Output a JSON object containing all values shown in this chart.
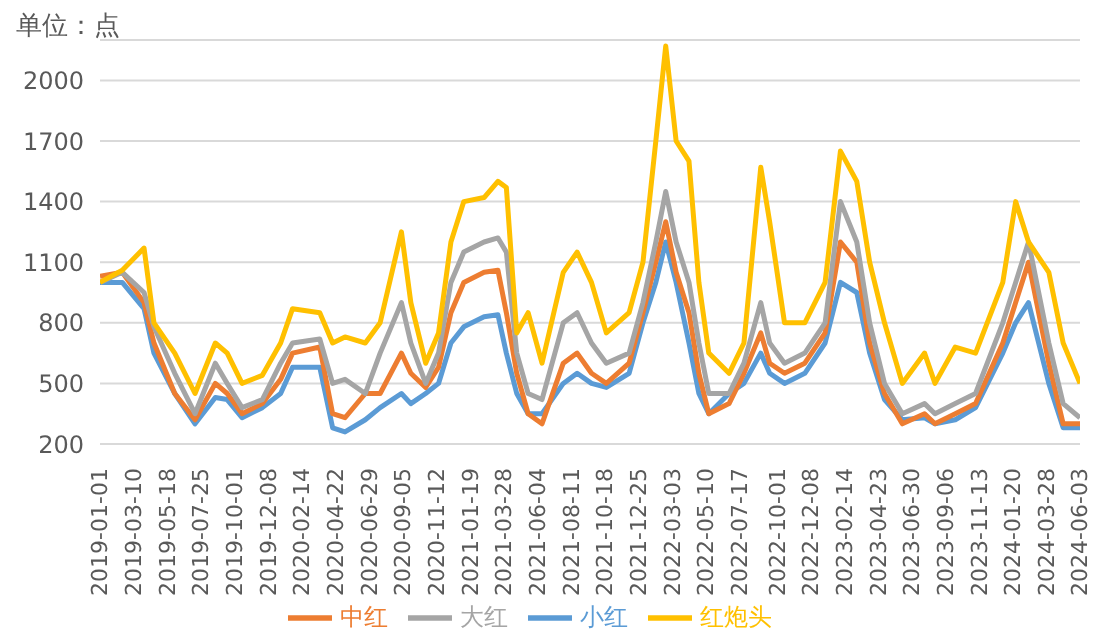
{
  "chart_data": {
    "type": "line",
    "ylabel": "单位：点",
    "x": [
      "2019-01-01",
      "2019-02-15",
      "2019-03-31",
      "2019-04-20",
      "2019-06-01",
      "2019-07-12",
      "2019-08-22",
      "2019-09-15",
      "2019-10-15",
      "2019-11-25",
      "2020-01-01",
      "2020-01-25",
      "2020-03-20",
      "2020-04-15",
      "2020-05-10",
      "2020-06-20",
      "2020-07-20",
      "2020-09-01",
      "2020-09-20",
      "2020-10-20",
      "2020-11-15",
      "2020-12-10",
      "2021-01-05",
      "2021-02-15",
      "2021-03-15",
      "2021-04-01",
      "2021-04-22",
      "2021-05-15",
      "2021-06-12",
      "2021-07-25",
      "2021-08-22",
      "2021-09-20",
      "2021-10-20",
      "2021-12-05",
      "2022-01-02",
      "2022-01-28",
      "2022-02-17",
      "2022-03-10",
      "2022-04-05",
      "2022-04-25",
      "2022-05-15",
      "2022-06-25",
      "2022-07-25",
      "2022-08-28",
      "2022-09-15",
      "2022-10-15",
      "2022-11-25",
      "2023-01-05",
      "2023-02-05",
      "2023-03-10",
      "2023-04-05",
      "2023-05-05",
      "2023-06-10",
      "2023-07-25",
      "2023-08-15",
      "2023-09-25",
      "2023-11-05",
      "2023-12-30",
      "2024-01-25",
      "2024-02-20",
      "2024-04-01",
      "2024-04-30",
      "2024-06-03"
    ],
    "series": [
      {
        "name": "小红",
        "color": "#5b9bd5",
        "values": [
          1000,
          1000,
          870,
          650,
          450,
          300,
          430,
          420,
          330,
          380,
          450,
          580,
          580,
          280,
          260,
          320,
          380,
          450,
          400,
          450,
          500,
          700,
          780,
          830,
          840,
          650,
          450,
          350,
          350,
          500,
          550,
          500,
          480,
          550,
          800,
          1000,
          1200,
          1000,
          700,
          450,
          350,
          450,
          500,
          650,
          550,
          500,
          550,
          700,
          1000,
          950,
          650,
          420,
          320,
          330,
          300,
          320,
          380,
          650,
          800,
          900,
          500,
          280,
          280
        ]
      },
      {
        "name": "中红",
        "color": "#ed7d31",
        "values": [
          1030,
          1050,
          900,
          700,
          450,
          320,
          500,
          450,
          350,
          400,
          520,
          650,
          680,
          350,
          330,
          450,
          450,
          650,
          550,
          480,
          580,
          850,
          1000,
          1050,
          1060,
          850,
          550,
          350,
          300,
          600,
          650,
          550,
          500,
          600,
          850,
          1100,
          1300,
          1050,
          850,
          550,
          350,
          400,
          550,
          750,
          600,
          550,
          600,
          750,
          1200,
          1100,
          700,
          450,
          300,
          350,
          300,
          350,
          400,
          700,
          900,
          1100,
          600,
          300,
          300
        ]
      },
      {
        "name": "大红",
        "color": "#a5a5a5",
        "values": [
          1000,
          1050,
          950,
          780,
          550,
          350,
          600,
          500,
          380,
          420,
          600,
          700,
          720,
          500,
          520,
          450,
          650,
          900,
          700,
          500,
          650,
          1000,
          1150,
          1200,
          1220,
          1150,
          650,
          450,
          420,
          800,
          850,
          700,
          600,
          650,
          900,
          1200,
          1450,
          1200,
          1000,
          700,
          450,
          450,
          600,
          900,
          700,
          600,
          650,
          800,
          1400,
          1200,
          800,
          500,
          350,
          400,
          350,
          400,
          450,
          800,
          1000,
          1200,
          700,
          400,
          330
        ]
      },
      {
        "name": "红炮头",
        "color": "#ffc000",
        "values": [
          1000,
          1060,
          1170,
          800,
          650,
          450,
          700,
          650,
          500,
          540,
          700,
          870,
          850,
          700,
          730,
          700,
          800,
          1250,
          900,
          600,
          750,
          1200,
          1400,
          1420,
          1500,
          1470,
          750,
          850,
          600,
          1050,
          1150,
          1000,
          750,
          850,
          1100,
          1700,
          2170,
          1700,
          1600,
          1000,
          650,
          550,
          700,
          1570,
          1300,
          800,
          800,
          1000,
          1650,
          1500,
          1100,
          800,
          500,
          650,
          500,
          680,
          650,
          1000,
          1400,
          1200,
          1050,
          700,
          500
        ]
      }
    ],
    "xlim": [
      "2019-01-01",
      "2024-06-03"
    ],
    "xticks": [
      "2019-01-01",
      "2019-03-10",
      "2019-05-18",
      "2019-07-25",
      "2019-10-01",
      "2019-12-08",
      "2020-02-14",
      "2020-04-22",
      "2020-06-29",
      "2020-09-05",
      "2020-11-12",
      "2021-01-19",
      "2021-03-28",
      "2021-06-04",
      "2021-08-11",
      "2021-10-18",
      "2021-12-25",
      "2022-03-03",
      "2022-05-10",
      "2022-07-17",
      "2022-10-01",
      "2022-12-08",
      "2023-02-14",
      "2023-04-23",
      "2023-06-30",
      "2023-09-06",
      "2023-11-13",
      "2024-01-20",
      "2024-03-28",
      "2024-06-03"
    ],
    "ylim": [
      200,
      2200
    ],
    "yticks": [
      200,
      500,
      800,
      1100,
      1400,
      1700,
      2000
    ],
    "grid": "y",
    "legend": "bottom",
    "marker": "none",
    "line_style": "solid"
  }
}
